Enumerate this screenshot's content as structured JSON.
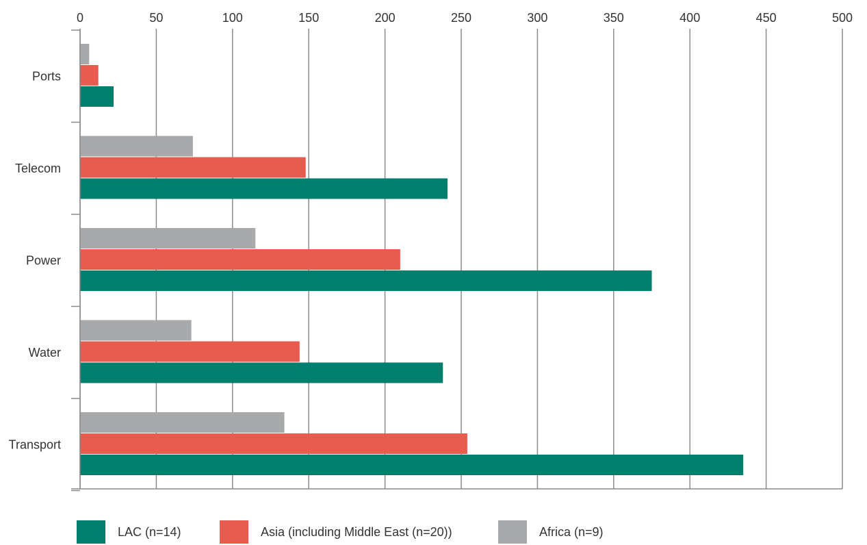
{
  "chart_data": {
    "type": "bar",
    "orientation": "horizontal",
    "title": "",
    "xlabel": "",
    "ylabel": "",
    "categories": [
      "Ports",
      "Telecom",
      "Power",
      "Water",
      "Transport"
    ],
    "series": [
      {
        "name": "Africa (n=9)",
        "color": "#a7a9ab",
        "values": [
          6,
          74,
          115,
          73,
          134
        ]
      },
      {
        "name": "Asia (including Middle East (n=20))",
        "color": "#e85c50",
        "values": [
          12,
          148,
          210,
          144,
          254
        ]
      },
      {
        "name": "LAC (n=14)",
        "color": "#007f6e",
        "values": [
          22,
          241,
          375,
          238,
          435
        ]
      }
    ],
    "xlim": [
      0,
      500
    ],
    "xticks": [
      0,
      50,
      100,
      150,
      200,
      250,
      300,
      350,
      400,
      450,
      500
    ],
    "x_axis_position": "top",
    "grid": true,
    "legend_position": "bottom",
    "legend_order": [
      "LAC (n=14)",
      "Asia (including Middle East (n=20))",
      "Africa (n=9)"
    ]
  }
}
